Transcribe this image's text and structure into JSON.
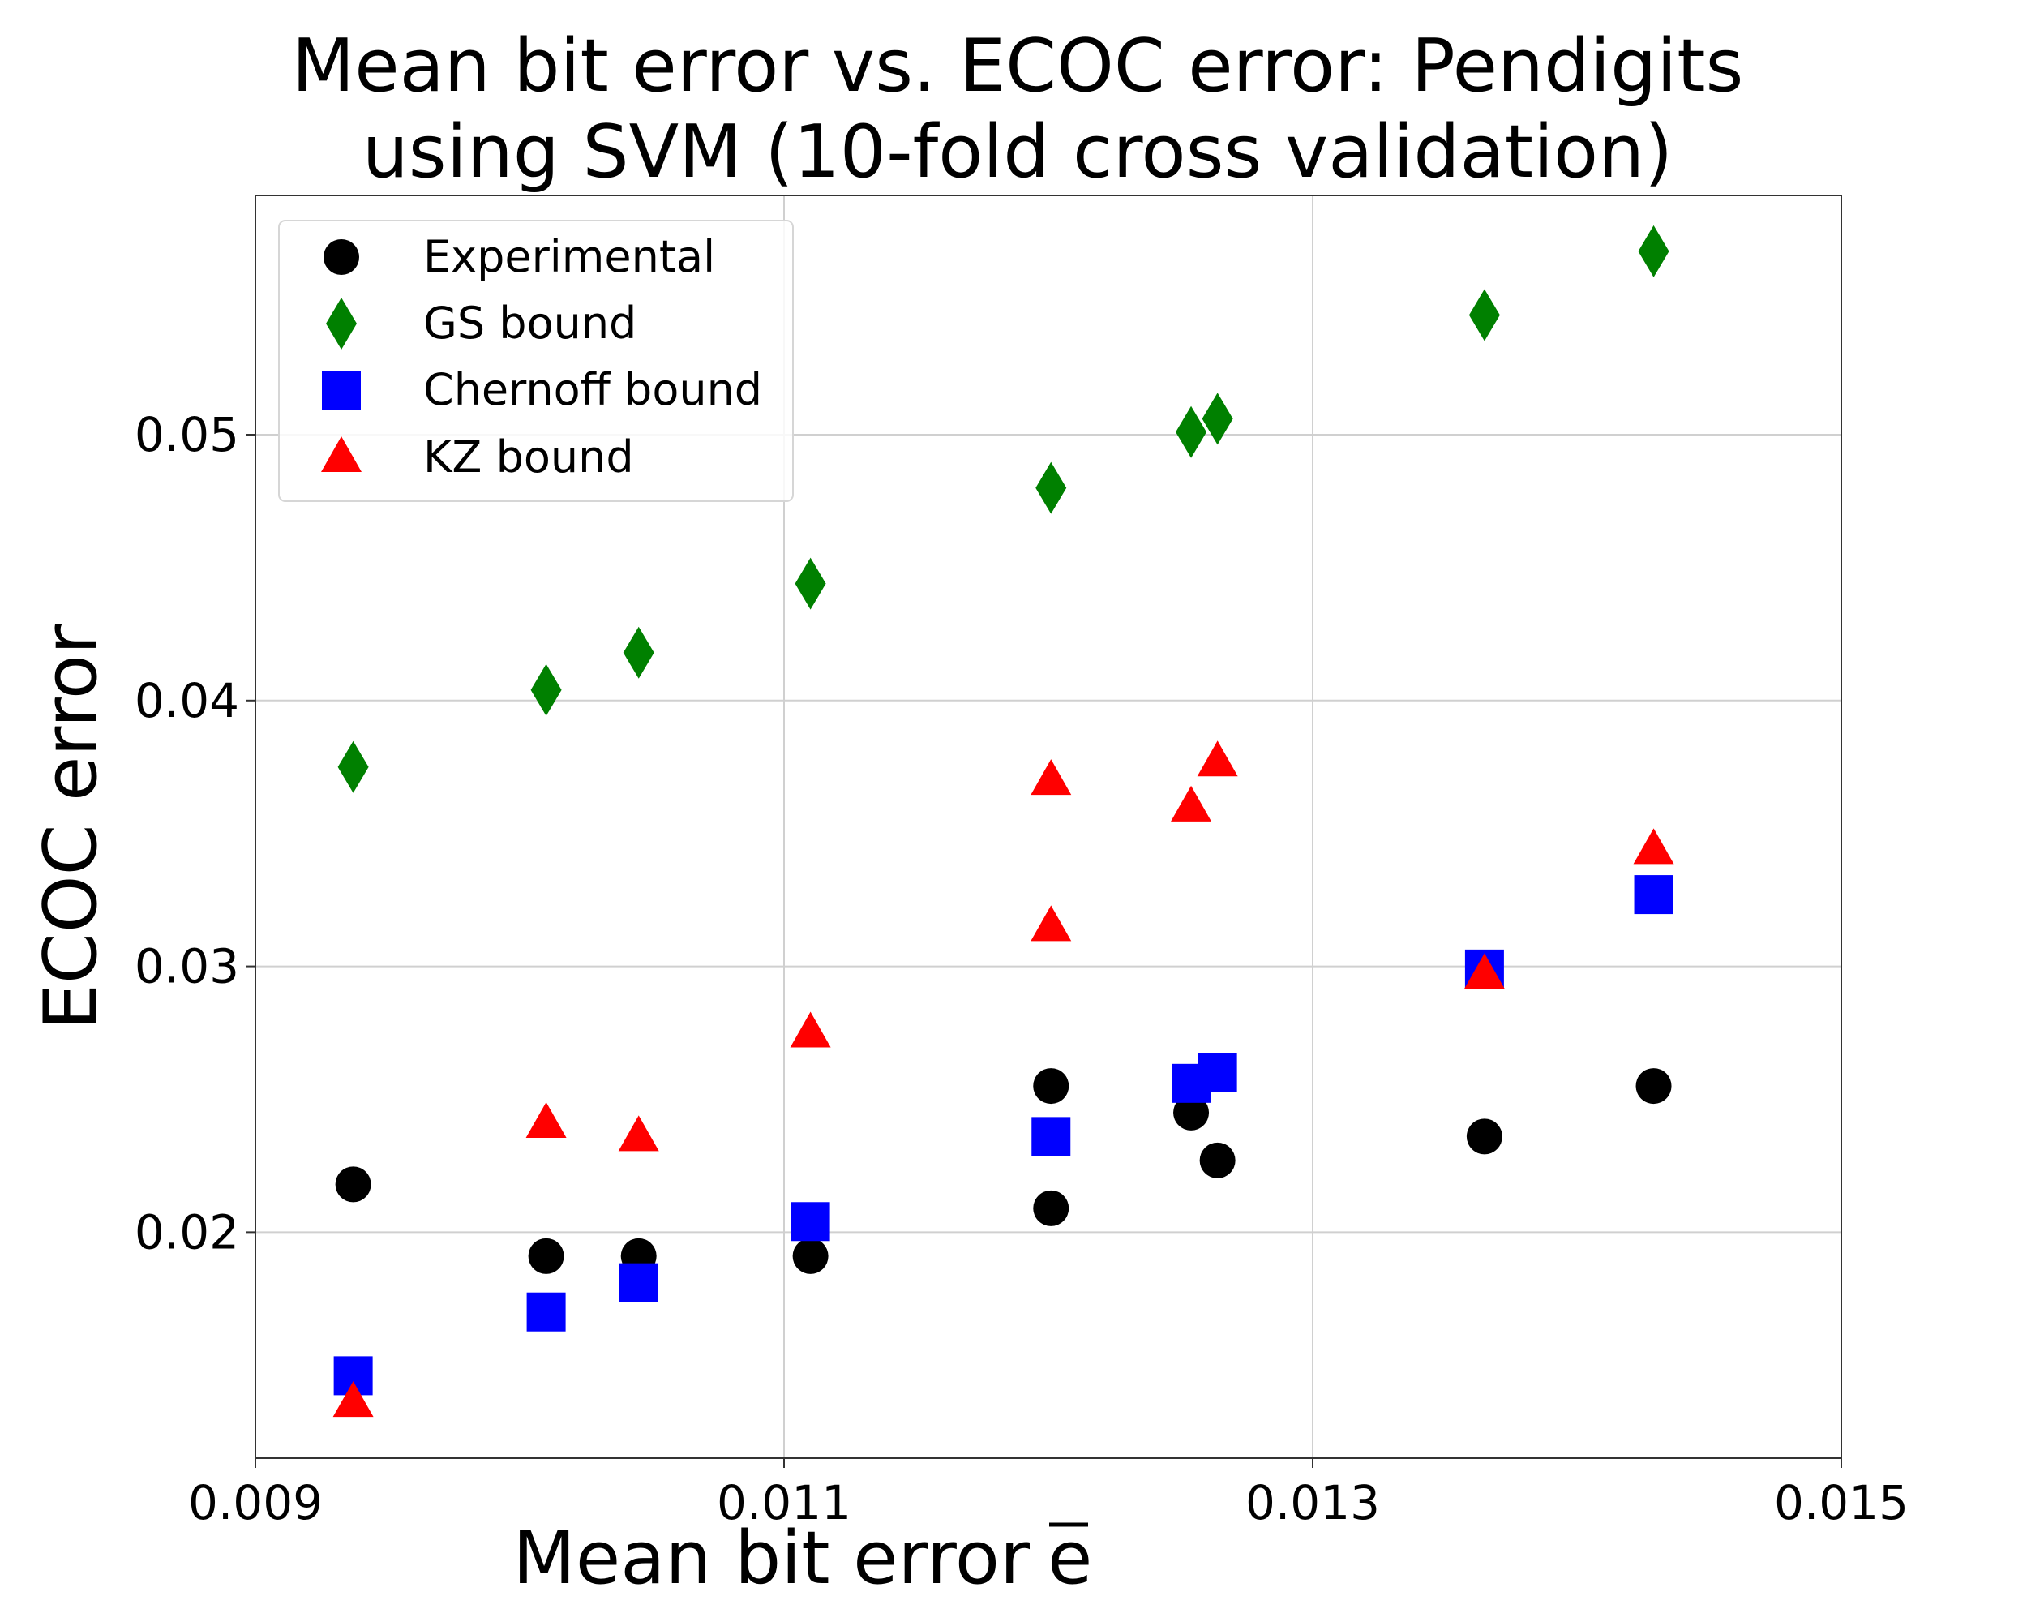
{
  "chart_data": {
    "type": "scatter",
    "title_lines": [
      "Mean bit error vs. ECOC error: Pendigits",
      "using SVM (10-fold cross validation)"
    ],
    "xlabel": "Mean bit error",
    "xlabel_symbol": "e",
    "ylabel": "ECOC error",
    "xlim": [
      0.009,
      0.015
    ],
    "ylim": [
      0.0115,
      0.059
    ],
    "xticks": [
      {
        "value": 0.009,
        "label": "0.009"
      },
      {
        "value": 0.011,
        "label": "0.011"
      },
      {
        "value": 0.013,
        "label": "0.013"
      },
      {
        "value": 0.015,
        "label": "0.015"
      }
    ],
    "yticks": [
      {
        "value": 0.02,
        "label": "0.02"
      },
      {
        "value": 0.03,
        "label": "0.03"
      },
      {
        "value": 0.04,
        "label": "0.04"
      },
      {
        "value": 0.05,
        "label": "0.05"
      }
    ],
    "grid": true,
    "legend_position": "top-left",
    "series": [
      {
        "name": "Experimental",
        "marker": "circle",
        "color": "#000000",
        "x": [
          0.00937,
          0.0101,
          0.01045,
          0.0111,
          0.01201,
          0.01201,
          0.01254,
          0.01264,
          0.01365,
          0.01429
        ],
        "y": [
          0.0218,
          0.0191,
          0.0191,
          0.0191,
          0.0255,
          0.0209,
          0.0245,
          0.0227,
          0.0236,
          0.0255
        ]
      },
      {
        "name": "GS bound",
        "marker": "diamond",
        "color": "#008000",
        "x": [
          0.00937,
          0.0101,
          0.01045,
          0.0111,
          0.01201,
          0.01254,
          0.01264,
          0.01365,
          0.01429
        ],
        "y": [
          0.0375,
          0.0404,
          0.0418,
          0.0444,
          0.048,
          0.0501,
          0.0506,
          0.0545,
          0.0569
        ]
      },
      {
        "name": "Chernoff bound",
        "marker": "square",
        "color": "#0000ff",
        "x": [
          0.00937,
          0.0101,
          0.01045,
          0.0111,
          0.01201,
          0.01254,
          0.01264,
          0.01365,
          0.01429
        ],
        "y": [
          0.0146,
          0.017,
          0.0181,
          0.0204,
          0.0236,
          0.0256,
          0.026,
          0.0299,
          0.0327
        ]
      },
      {
        "name": "KZ bound",
        "marker": "triangle",
        "color": "#ff0000",
        "x": [
          0.00937,
          0.0101,
          0.01045,
          0.0111,
          0.01201,
          0.01201,
          0.01254,
          0.01264,
          0.01365,
          0.01429
        ],
        "y": [
          0.0136,
          0.0241,
          0.0236,
          0.0275,
          0.037,
          0.0315,
          0.036,
          0.0377,
          0.0297,
          0.0344
        ]
      }
    ]
  }
}
